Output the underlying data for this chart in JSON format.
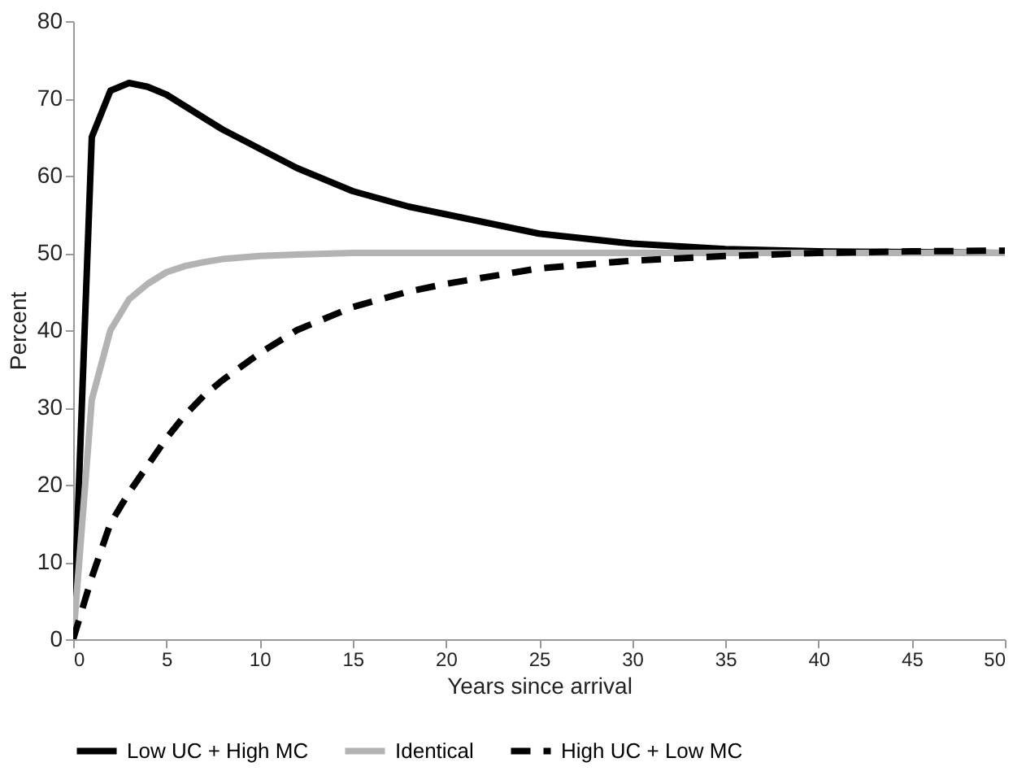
{
  "chart_data": {
    "type": "line",
    "xlabel": "Years since arrival",
    "ylabel": "Percent",
    "xlim": [
      0,
      50
    ],
    "xticks": [
      0,
      5,
      10,
      15,
      20,
      25,
      30,
      35,
      40,
      45,
      50
    ],
    "ylim": [
      0,
      80
    ],
    "yticks": [
      0,
      10,
      20,
      30,
      40,
      50,
      60,
      70,
      80
    ],
    "grid": false,
    "legend": "bottom",
    "marker": "none",
    "series": [
      {
        "name": "Low UC + High MC",
        "color": "#000000",
        "line_style": "solid",
        "x": [
          0,
          1,
          2,
          3,
          4,
          5,
          6,
          7,
          8,
          10,
          12,
          15,
          18,
          20,
          25,
          30,
          35,
          40,
          45,
          50
        ],
        "values": [
          0,
          65,
          71,
          72,
          71.5,
          70.5,
          69,
          67.5,
          66,
          63.5,
          61,
          58,
          56,
          55,
          52.5,
          51.2,
          50.5,
          50.2,
          50.1,
          50
        ]
      },
      {
        "name": "Identical",
        "color": "#b3b3b3",
        "line_style": "solid",
        "x": [
          0,
          1,
          2,
          3,
          4,
          5,
          6,
          7,
          8,
          10,
          12,
          15,
          20,
          30,
          40,
          50
        ],
        "values": [
          0,
          31,
          40,
          44,
          46,
          47.5,
          48.3,
          48.8,
          49.2,
          49.6,
          49.8,
          50,
          50,
          50,
          50,
          50
        ]
      },
      {
        "name": "High UC + Low MC",
        "color": "#000000",
        "line_style": "dashed",
        "x": [
          0,
          1,
          2,
          3,
          4,
          5,
          6,
          7,
          8,
          10,
          12,
          15,
          18,
          20,
          25,
          30,
          35,
          40,
          45,
          50
        ],
        "values": [
          0,
          8,
          15,
          19,
          22.5,
          26,
          29,
          31.5,
          33.5,
          37,
          40,
          43,
          45,
          46,
          48,
          49,
          49.6,
          50,
          50.2,
          50.3
        ]
      }
    ]
  }
}
